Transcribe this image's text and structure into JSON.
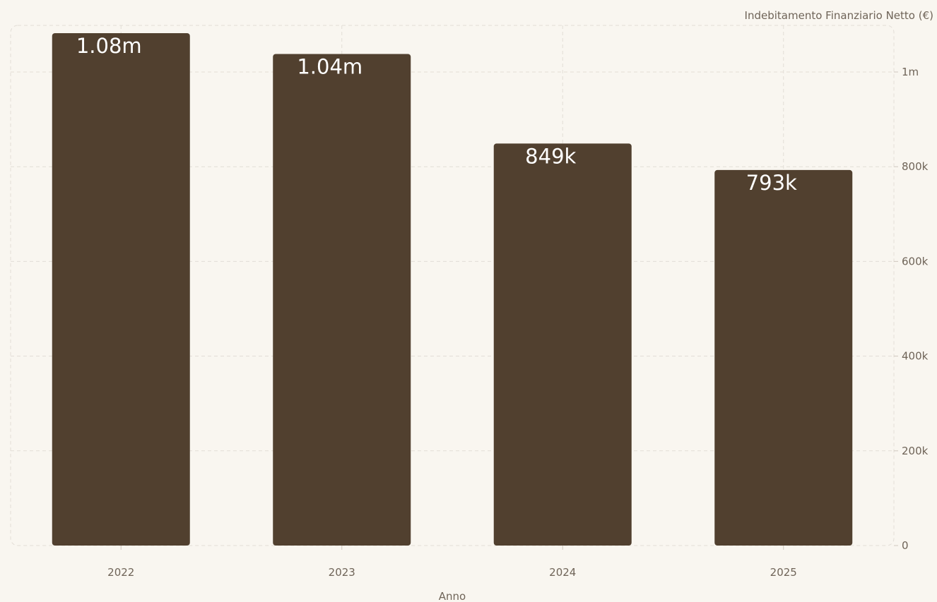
{
  "chart_data": {
    "type": "bar",
    "categories": [
      "2022",
      "2023",
      "2024",
      "2025"
    ],
    "values": [
      1082000,
      1038000,
      849000,
      793000
    ],
    "data_labels": [
      "1.08m",
      "1.04m",
      "849k",
      "793k"
    ],
    "xlabel": "Anno",
    "ylabel": "Indebitamento Finanziario Netto (€)",
    "ylim": [
      0,
      1100000
    ],
    "y_ticks": [
      0,
      200000,
      400000,
      600000,
      800000,
      1000000
    ],
    "y_tick_labels": [
      "0",
      "200k",
      "400k",
      "600k",
      "800k",
      "1m"
    ],
    "y_axis_side": "right",
    "grid": true,
    "bar_color": "#51402f",
    "label_color": "#ffffff",
    "background": "#f9f6f0"
  }
}
